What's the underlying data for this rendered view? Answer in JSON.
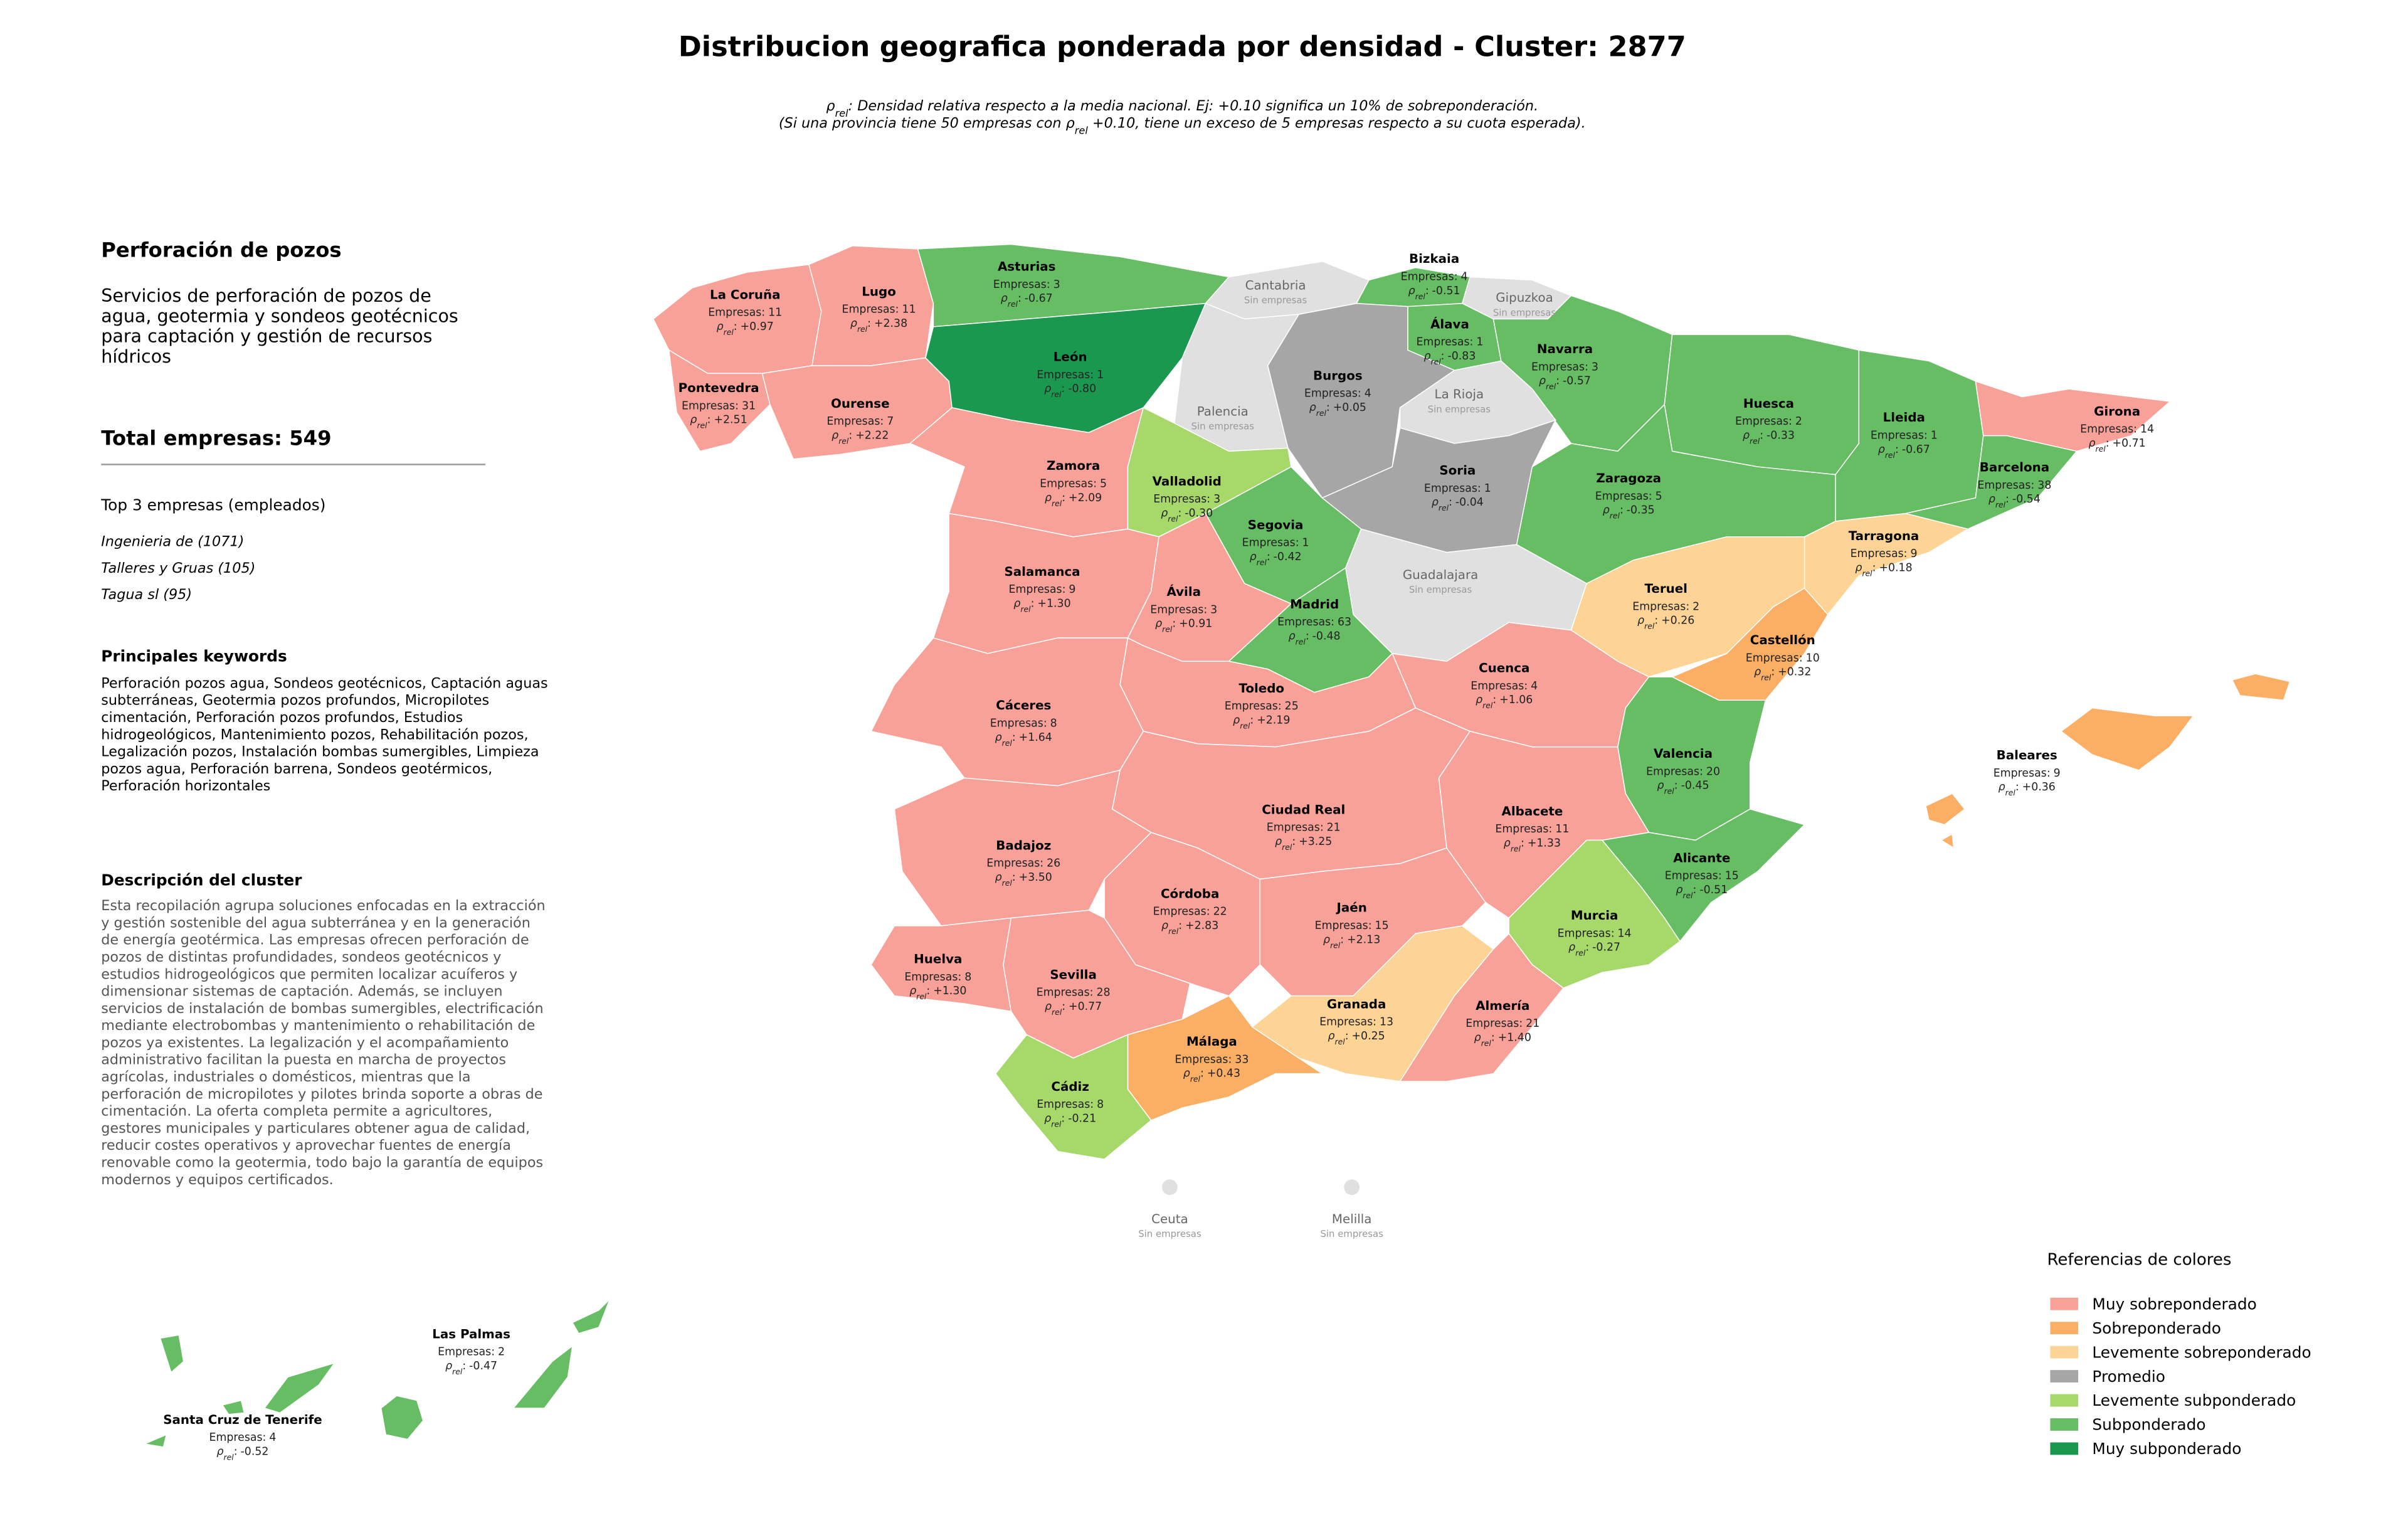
{
  "title": "Distribucion geografica ponderada por densidad - Cluster: 2877",
  "notes": [
    [
      {
        "t": "ρ"
      },
      {
        "t": "rel",
        "sub": true
      },
      {
        "t": ": Densidad relativa respecto a la media nacional. Ej: +0.10 significa un 10% de sobreponderación."
      }
    ],
    [
      {
        "t": "(Si una provincia tiene 50 empresas con ρ"
      },
      {
        "t": "rel",
        "sub": true
      },
      {
        "t": " +0.10, tiene un exceso de 5 empresas respecto a su cuota esperada)."
      }
    ]
  ],
  "sidebar": {
    "title": "Perforación de pozos",
    "description": "Servicios de perforación de pozos de agua, geotermia y sondeos geotécnicos para captación y gestión de recursos hídricos",
    "total_label": "Total empresas:",
    "total": 549,
    "top_title": "Top 3 empresas (empleados)",
    "top": [
      "Ingenieria de (1071)",
      "Talleres y Gruas (105)",
      "Tagua sl (95)"
    ],
    "keywords_title": "Principales keywords",
    "keywords": "Perforación pozos agua, Sondeos geotécnicos, Captación aguas subterráneas, Geotermia pozos profundos, Micropilotes cimentación, Perforación pozos profundos, Estudios hidrogeológicos, Mantenimiento pozos, Rehabilitación pozos, Legalización pozos, Instalación bombas sumergibles, Limpieza pozos agua, Perforación barrena, Sondeos geotérmicos, Perforación horizontales",
    "cluster_title": "Descripción del cluster",
    "cluster_text": "Esta recopilación agrupa soluciones enfocadas en la extracción y gestión sostenible del agua subterránea y en la generación de energía geotérmica. Las empresas ofrecen perforación de pozos de distintas profundidades, sondeos geotécnicos y estudios hidrogeológicos que permiten localizar acuíferos y dimensionar sistemas de captación. Además, se incluyen servicios de instalación de bombas sumergibles, electrificación mediante electrobombas y mantenimiento o rehabilitación de pozos ya existentes. La legalización y el acompañamiento administrativo facilitan la puesta en marcha de proyectos agrícolas, industriales o domésticos, mientras que la perforación de micropilotes y pilotes brinda soporte a obras de cimentación. La oferta completa permite a agricultores, gestores municipales y particulares obtener agua de calidad, reducir costes operativos y aprovechar fuentes de energía renovable como la geotermia, todo bajo la garantía de equipos modernos y equipos certificados."
  },
  "chart_data": {
    "type": "choropleth",
    "count_label": "Empresas:",
    "rho_parts": [
      "ρ",
      "rel",
      ":"
    ],
    "empty_label": "Sin empresas",
    "empty_color": "#e0e0e0",
    "regions": [
      {
        "name": "La Coruña",
        "count": 11,
        "rho": 0.97,
        "rho_label": "+0.97",
        "color": "#f7a199"
      },
      {
        "name": "Lugo",
        "count": 11,
        "rho": 2.38,
        "rho_label": "+2.38",
        "color": "#f7a199"
      },
      {
        "name": "Asturias",
        "count": 3,
        "rho": -0.67,
        "rho_label": "-0.67",
        "color": "#66bd63"
      },
      {
        "name": "Cantabria",
        "count": null,
        "rho": null,
        "rho_label": null,
        "color": "#e0e0e0"
      },
      {
        "name": "Bizkaia",
        "count": 4,
        "rho": -0.51,
        "rho_label": "-0.51",
        "color": "#66bd63"
      },
      {
        "name": "Gipuzkoa",
        "count": null,
        "rho": null,
        "rho_label": null,
        "color": "#e0e0e0"
      },
      {
        "name": "Álava",
        "count": 1,
        "rho": -0.83,
        "rho_label": "-0.83",
        "color": "#66bd63"
      },
      {
        "name": "Navarra",
        "count": 3,
        "rho": -0.57,
        "rho_label": "-0.57",
        "color": "#66bd63"
      },
      {
        "name": "Pontevedra",
        "count": 31,
        "rho": 2.51,
        "rho_label": "+2.51",
        "color": "#f7a199"
      },
      {
        "name": "Ourense",
        "count": 7,
        "rho": 2.22,
        "rho_label": "+2.22",
        "color": "#f7a199"
      },
      {
        "name": "León",
        "count": 1,
        "rho": -0.8,
        "rho_label": "-0.80",
        "color": "#1a9850"
      },
      {
        "name": "Palencia",
        "count": null,
        "rho": null,
        "rho_label": null,
        "color": "#e0e0e0"
      },
      {
        "name": "Burgos",
        "count": 4,
        "rho": 0.05,
        "rho_label": "+0.05",
        "color": "#a6a6a6"
      },
      {
        "name": "La Rioja",
        "count": null,
        "rho": null,
        "rho_label": null,
        "color": "#e0e0e0"
      },
      {
        "name": "Zamora",
        "count": 5,
        "rho": 2.09,
        "rho_label": "+2.09",
        "color": "#f7a199"
      },
      {
        "name": "Valladolid",
        "count": 3,
        "rho": -0.3,
        "rho_label": "-0.30",
        "color": "#a6d96a"
      },
      {
        "name": "Soria",
        "count": 1,
        "rho": -0.04,
        "rho_label": "-0.04",
        "color": "#a6a6a6"
      },
      {
        "name": "Segovia",
        "count": 1,
        "rho": -0.42,
        "rho_label": "-0.42",
        "color": "#66bd63"
      },
      {
        "name": "Huesca",
        "count": 2,
        "rho": -0.33,
        "rho_label": "-0.33",
        "color": "#66bd63"
      },
      {
        "name": "Lleida",
        "count": 1,
        "rho": -0.67,
        "rho_label": "-0.67",
        "color": "#66bd63"
      },
      {
        "name": "Girona",
        "count": 14,
        "rho": 0.71,
        "rho_label": "+0.71",
        "color": "#f7a199"
      },
      {
        "name": "Barcelona",
        "count": 38,
        "rho": -0.54,
        "rho_label": "-0.54",
        "color": "#66bd63"
      },
      {
        "name": "Zaragoza",
        "count": 5,
        "rho": -0.35,
        "rho_label": "-0.35",
        "color": "#66bd63"
      },
      {
        "name": "Tarragona",
        "count": 9,
        "rho": 0.18,
        "rho_label": "+0.18",
        "color": "#fdd496"
      },
      {
        "name": "Salamanca",
        "count": 9,
        "rho": 1.3,
        "rho_label": "+1.30",
        "color": "#f7a199"
      },
      {
        "name": "Ávila",
        "count": 3,
        "rho": 0.91,
        "rho_label": "+0.91",
        "color": "#f7a199"
      },
      {
        "name": "Guadalajara",
        "count": null,
        "rho": null,
        "rho_label": null,
        "color": "#e0e0e0"
      },
      {
        "name": "Madrid",
        "count": 63,
        "rho": -0.48,
        "rho_label": "-0.48",
        "color": "#66bd63"
      },
      {
        "name": "Teruel",
        "count": 2,
        "rho": 0.26,
        "rho_label": "+0.26",
        "color": "#fdd496"
      },
      {
        "name": "Castellón",
        "count": 10,
        "rho": 0.32,
        "rho_label": "+0.32",
        "color": "#fbaf65"
      },
      {
        "name": "Cuenca",
        "count": 4,
        "rho": 1.06,
        "rho_label": "+1.06",
        "color": "#f7a199"
      },
      {
        "name": "Toledo",
        "count": 25,
        "rho": 2.19,
        "rho_label": "+2.19",
        "color": "#f7a199"
      },
      {
        "name": "Cáceres",
        "count": 8,
        "rho": 1.64,
        "rho_label": "+1.64",
        "color": "#f7a199"
      },
      {
        "name": "Valencia",
        "count": 20,
        "rho": -0.45,
        "rho_label": "-0.45",
        "color": "#66bd63"
      },
      {
        "name": "Baleares",
        "count": 9,
        "rho": 0.36,
        "rho_label": "+0.36",
        "color": "#fbaf65"
      },
      {
        "name": "Ciudad Real",
        "count": 21,
        "rho": 3.25,
        "rho_label": "+3.25",
        "color": "#f7a199"
      },
      {
        "name": "Albacete",
        "count": 11,
        "rho": 1.33,
        "rho_label": "+1.33",
        "color": "#f7a199"
      },
      {
        "name": "Badajoz",
        "count": 26,
        "rho": 3.5,
        "rho_label": "+3.50",
        "color": "#f7a199"
      },
      {
        "name": "Alicante",
        "count": 15,
        "rho": -0.51,
        "rho_label": "-0.51",
        "color": "#66bd63"
      },
      {
        "name": "Córdoba",
        "count": 22,
        "rho": 2.83,
        "rho_label": "+2.83",
        "color": "#f7a199"
      },
      {
        "name": "Jaén",
        "count": 15,
        "rho": 2.13,
        "rho_label": "+2.13",
        "color": "#f7a199"
      },
      {
        "name": "Murcia",
        "count": 14,
        "rho": -0.27,
        "rho_label": "-0.27",
        "color": "#a6d96a"
      },
      {
        "name": "Huelva",
        "count": 8,
        "rho": 1.3,
        "rho_label": "+1.30",
        "color": "#f7a199"
      },
      {
        "name": "Sevilla",
        "count": 28,
        "rho": 0.77,
        "rho_label": "+0.77",
        "color": "#f7a199"
      },
      {
        "name": "Granada",
        "count": 13,
        "rho": 0.25,
        "rho_label": "+0.25",
        "color": "#fdd496"
      },
      {
        "name": "Almería",
        "count": 21,
        "rho": 1.4,
        "rho_label": "+1.40",
        "color": "#f7a199"
      },
      {
        "name": "Málaga",
        "count": 33,
        "rho": 0.43,
        "rho_label": "+0.43",
        "color": "#fbaf65"
      },
      {
        "name": "Cádiz",
        "count": 8,
        "rho": -0.21,
        "rho_label": "-0.21",
        "color": "#a6d96a"
      },
      {
        "name": "Ceuta",
        "count": null,
        "rho": null,
        "rho_label": null,
        "color": "#e0e0e0"
      },
      {
        "name": "Melilla",
        "count": null,
        "rho": null,
        "rho_label": null,
        "color": "#e0e0e0"
      },
      {
        "name": "Las Palmas",
        "count": 2,
        "rho": -0.47,
        "rho_label": "-0.47",
        "color": "#66bd63"
      },
      {
        "name": "Santa Cruz de Tenerife",
        "count": 4,
        "rho": -0.52,
        "rho_label": "-0.52",
        "color": "#66bd63"
      }
    ],
    "legend": {
      "title": "Referencias de colores",
      "classes": [
        {
          "name": "Muy sobreponderado",
          "color": "#f7a199"
        },
        {
          "name": "Sobreponderado",
          "color": "#fbaf65"
        },
        {
          "name": "Levemente sobreponderado",
          "color": "#fdd496"
        },
        {
          "name": "Promedio",
          "color": "#a6a6a6"
        },
        {
          "name": "Levemente subponderado",
          "color": "#a6d96a"
        },
        {
          "name": "Subponderado",
          "color": "#66bd63"
        },
        {
          "name": "Muy subponderado",
          "color": "#1a9850"
        }
      ]
    }
  }
}
